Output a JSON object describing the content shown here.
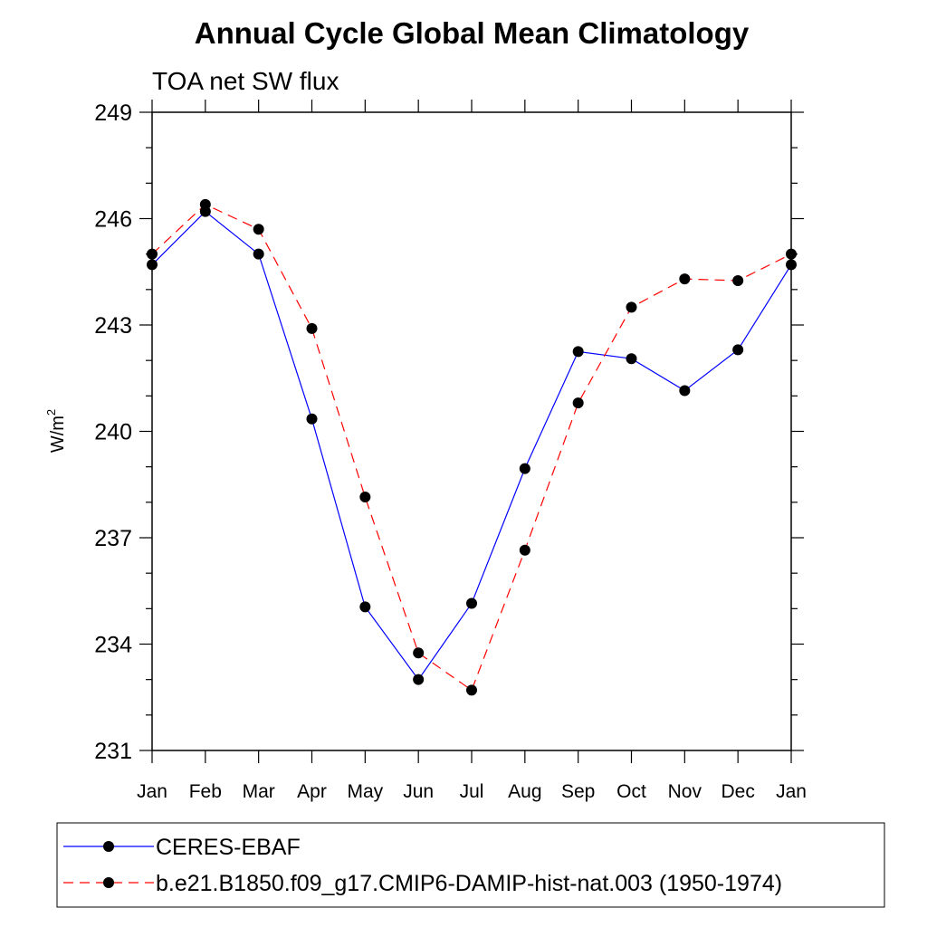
{
  "chart_data": {
    "type": "line",
    "title": "Annual Cycle Global Mean Climatology",
    "subtitle": "TOA net SW flux",
    "ylabel": "W/m",
    "ylabel_superscript": "2",
    "xlabel": "",
    "categories": [
      "Jan",
      "Feb",
      "Mar",
      "Apr",
      "May",
      "Jun",
      "Jul",
      "Aug",
      "Sep",
      "Oct",
      "Nov",
      "Dec",
      "Jan"
    ],
    "ylim": [
      231,
      249
    ],
    "yticks": [
      "249",
      "246",
      "243",
      "240",
      "237",
      "234",
      "231"
    ],
    "grid": false,
    "legend_position": "bottom",
    "series": [
      {
        "name": "CERES-EBAF",
        "color": "#0000ff",
        "dash": "solid",
        "marker": "filled-circle",
        "values": [
          244.7,
          246.2,
          245.0,
          240.35,
          235.05,
          233.0,
          235.15,
          238.95,
          242.25,
          242.05,
          241.15,
          242.3,
          244.7
        ]
      },
      {
        "name": "b.e21.B1850.f09_g17.CMIP6-DAMIP-hist-nat.003 (1950-1974)",
        "color": "#ff0000",
        "dash": "dashed",
        "marker": "filled-circle",
        "values": [
          245.0,
          246.4,
          245.7,
          242.9,
          238.15,
          233.75,
          232.7,
          236.65,
          240.8,
          243.5,
          244.3,
          244.25,
          245.0
        ]
      }
    ]
  }
}
